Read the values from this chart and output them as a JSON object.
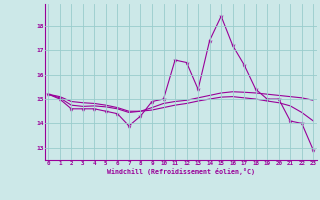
{
  "xlabel": "Windchill (Refroidissement éolien,°C)",
  "bg_color": "#cce8e8",
  "line_color": "#990099",
  "grid_color": "#99cccc",
  "x_values": [
    0,
    1,
    2,
    3,
    4,
    5,
    6,
    7,
    8,
    9,
    10,
    11,
    12,
    13,
    14,
    15,
    16,
    17,
    18,
    19,
    20,
    21,
    22,
    23
  ],
  "series1": [
    15.2,
    15.0,
    14.6,
    14.6,
    14.6,
    14.5,
    14.4,
    13.9,
    14.3,
    14.9,
    15.0,
    16.6,
    16.5,
    15.4,
    17.4,
    18.4,
    17.2,
    16.4,
    15.4,
    15.0,
    15.0,
    14.1,
    14.0,
    12.9
  ],
  "series2": [
    15.2,
    15.05,
    14.75,
    14.7,
    14.72,
    14.68,
    14.6,
    14.45,
    14.5,
    14.65,
    14.82,
    14.9,
    14.95,
    15.05,
    15.15,
    15.25,
    15.3,
    15.28,
    15.25,
    15.2,
    15.15,
    15.1,
    15.05,
    14.95
  ],
  "series3": [
    15.2,
    15.1,
    14.9,
    14.85,
    14.82,
    14.75,
    14.65,
    14.5,
    14.5,
    14.55,
    14.65,
    14.75,
    14.82,
    14.92,
    15.0,
    15.08,
    15.1,
    15.05,
    15.0,
    14.92,
    14.85,
    14.72,
    14.45,
    14.1
  ],
  "ylim": [
    12.5,
    18.9
  ],
  "yticks": [
    13,
    14,
    15,
    16,
    17,
    18
  ],
  "xticks": [
    0,
    1,
    2,
    3,
    4,
    5,
    6,
    7,
    8,
    9,
    10,
    11,
    12,
    13,
    14,
    15,
    16,
    17,
    18,
    19,
    20,
    21,
    22,
    23
  ]
}
